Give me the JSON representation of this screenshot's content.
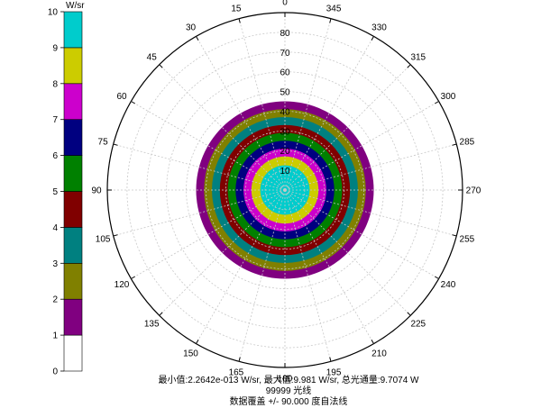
{
  "chart_data": {
    "type": "polar_intensity",
    "unit_label": "W/sr",
    "colorbar": {
      "ticks": [
        "0",
        "1",
        "2",
        "3",
        "4",
        "5",
        "6",
        "7",
        "8",
        "9",
        "10"
      ],
      "colors_bottom_to_top": [
        "#ffffff",
        "#800080",
        "#808000",
        "#008080",
        "#800000",
        "#008000",
        "#000080",
        "#cc00cc",
        "#cccc00",
        "#00cccc"
      ]
    },
    "angle_labels": [
      {
        "deg": 0,
        "text": "0"
      },
      {
        "deg": 15,
        "text": "345"
      },
      {
        "deg": 30,
        "text": "330"
      },
      {
        "deg": 45,
        "text": "315"
      },
      {
        "deg": 60,
        "text": "300"
      },
      {
        "deg": 75,
        "text": "285"
      },
      {
        "deg": 90,
        "text": "270"
      },
      {
        "deg": 105,
        "text": "255"
      },
      {
        "deg": 120,
        "text": "240"
      },
      {
        "deg": 135,
        "text": "225"
      },
      {
        "deg": 150,
        "text": "210"
      },
      {
        "deg": 165,
        "text": "195"
      },
      {
        "deg": 180,
        "text": "180"
      },
      {
        "deg": 195,
        "text": "165"
      },
      {
        "deg": 210,
        "text": "150"
      },
      {
        "deg": 225,
        "text": "135"
      },
      {
        "deg": 240,
        "text": "120"
      },
      {
        "deg": 255,
        "text": "105"
      },
      {
        "deg": 270,
        "text": "90"
      },
      {
        "deg": 285,
        "text": "75"
      },
      {
        "deg": 300,
        "text": "60"
      },
      {
        "deg": 315,
        "text": "45"
      },
      {
        "deg": 330,
        "text": "30"
      },
      {
        "deg": 345,
        "text": "15"
      }
    ],
    "radial_ticks": [
      "10",
      "20",
      "30",
      "40",
      "50",
      "60",
      "70",
      "80"
    ],
    "radial_max": 90,
    "rings": [
      {
        "outer_angle": 45,
        "color": "#800080"
      },
      {
        "outer_angle": 41,
        "color": "#808000"
      },
      {
        "outer_angle": 37,
        "color": "#008080"
      },
      {
        "outer_angle": 33,
        "color": "#800000"
      },
      {
        "outer_angle": 29,
        "color": "#008000"
      },
      {
        "outer_angle": 25,
        "color": "#000080"
      },
      {
        "outer_angle": 21,
        "color": "#cc00cc"
      },
      {
        "outer_angle": 17,
        "color": "#cccc00"
      },
      {
        "outer_angle": 12.5,
        "color": "#00cccc"
      }
    ]
  },
  "footer": {
    "line1": "最小值:2.2642e-013 W/sr, 最大值:9.981 W/sr, 总光通量:9.7074 W",
    "line2": "99999 光线",
    "line3": "数据覆盖 +/- 90.000 度自法线"
  }
}
